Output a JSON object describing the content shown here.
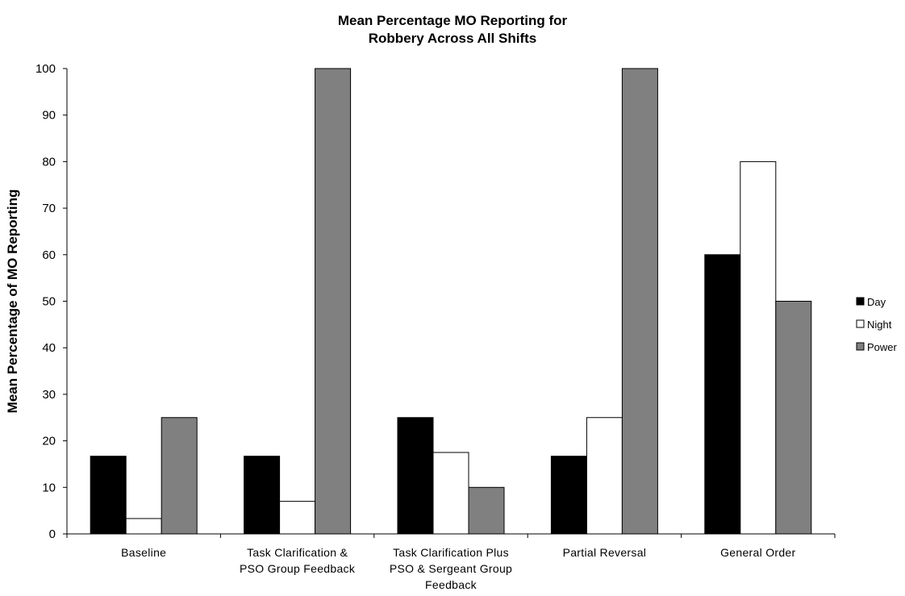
{
  "chart_data": {
    "type": "bar",
    "title_lines": [
      "Mean Percentage MO Reporting for",
      "Robbery Across All Shifts"
    ],
    "xlabel": "",
    "ylabel": "Mean Percentage of MO Reporting",
    "ylim": [
      0,
      100
    ],
    "yticks": [
      0,
      10,
      20,
      30,
      40,
      50,
      60,
      70,
      80,
      90,
      100
    ],
    "grid": false,
    "legend_position": "right",
    "categories": [
      [
        "Baseline"
      ],
      [
        "Task Clarification &",
        "PSO Group Feedback"
      ],
      [
        "Task Clarification Plus",
        "PSO & Sergeant Group",
        "Feedback"
      ],
      [
        "Partial Reversal"
      ],
      [
        "General Order"
      ]
    ],
    "series": [
      {
        "name": "Day",
        "color": "#000000",
        "values": [
          16.7,
          16.7,
          25,
          16.7,
          60
        ]
      },
      {
        "name": "Night",
        "color": "#ffffff",
        "values": [
          3.3,
          7,
          17.5,
          25,
          80
        ]
      },
      {
        "name": "Power",
        "color": "#808080",
        "values": [
          25,
          100,
          10,
          100,
          50
        ]
      }
    ]
  }
}
